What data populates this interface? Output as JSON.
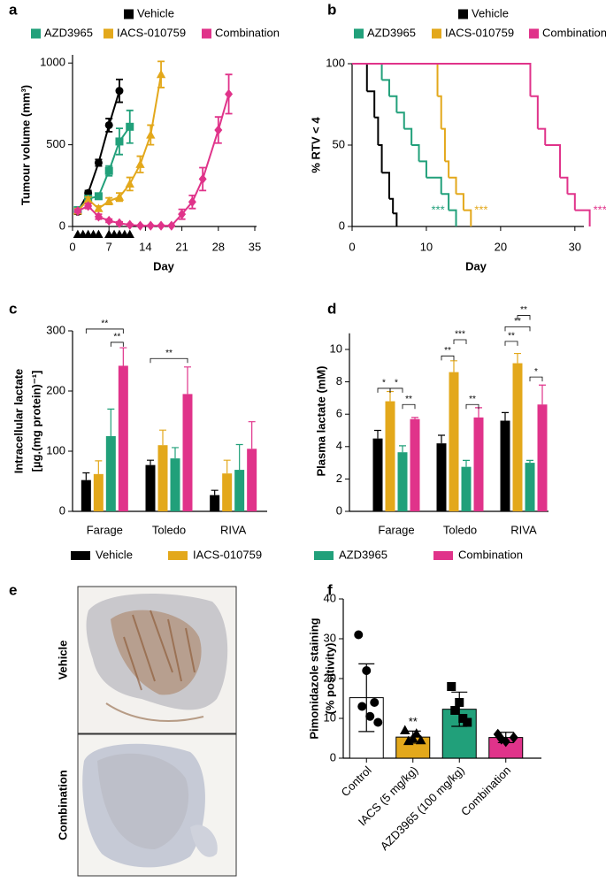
{
  "panel_labels": [
    "a",
    "b",
    "c",
    "d",
    "e",
    "f"
  ],
  "panel_e": {
    "labels": [
      "Vehicle",
      "Combination"
    ]
  },
  "chart_data": [
    {
      "type": "line",
      "ylabel": "Tumour volume (mm³)",
      "xlabel": "Day",
      "xlim": [
        0,
        35
      ],
      "xticks": [
        0,
        7,
        14,
        21,
        28,
        35
      ],
      "ylim": [
        0,
        1050
      ],
      "yticks": [
        0,
        500,
        1000
      ],
      "dosing_days": [
        1,
        2,
        3,
        4,
        5,
        7,
        8,
        9,
        10,
        11
      ],
      "series": [
        {
          "name": "Vehicle",
          "color": "#000000",
          "marker": "circle",
          "x": [
            1,
            3,
            5,
            7,
            9
          ],
          "values": [
            90,
            205,
            390,
            620,
            830
          ],
          "errors": [
            15,
            15,
            20,
            40,
            70
          ]
        },
        {
          "name": "AZD3965",
          "color": "#21a07a",
          "marker": "square",
          "x": [
            1,
            3,
            5,
            7,
            9,
            11
          ],
          "values": [
            100,
            170,
            185,
            340,
            520,
            610
          ],
          "errors": [
            15,
            15,
            15,
            30,
            80,
            100
          ]
        },
        {
          "name": "IACS-010759",
          "color": "#e3a81b",
          "marker": "triangle",
          "x": [
            1,
            3,
            5,
            7,
            9,
            11,
            13,
            15,
            17
          ],
          "values": [
            95,
            165,
            110,
            155,
            180,
            260,
            380,
            560,
            930
          ],
          "errors": [
            15,
            15,
            15,
            20,
            25,
            40,
            50,
            60,
            80
          ]
        },
        {
          "name": "Combination",
          "color": "#e0338a",
          "marker": "diamond",
          "x": [
            1,
            3,
            5,
            7,
            9,
            11,
            13,
            15,
            17,
            19,
            21,
            23,
            25,
            28,
            30
          ],
          "values": [
            95,
            125,
            60,
            35,
            20,
            10,
            5,
            5,
            5,
            5,
            75,
            150,
            290,
            590,
            810
          ],
          "errors": [
            10,
            15,
            15,
            10,
            8,
            5,
            3,
            3,
            3,
            3,
            30,
            40,
            70,
            80,
            120
          ]
        }
      ]
    },
    {
      "type": "step",
      "ylabel": "% RTV < 4",
      "xlabel": "Day",
      "xlim": [
        0,
        33
      ],
      "xticks": [
        0,
        10,
        20,
        30
      ],
      "ylim": [
        0,
        100
      ],
      "yticks": [
        0,
        50,
        100
      ],
      "series": [
        {
          "name": "Vehicle",
          "color": "#000000",
          "x": [
            0,
            2,
            3,
            3.5,
            4,
            5,
            5.5,
            6
          ],
          "values": [
            100,
            83,
            67,
            50,
            33,
            17,
            8,
            0
          ]
        },
        {
          "name": "AZD3965",
          "color": "#21a07a",
          "x": [
            0,
            4,
            5,
            6,
            7,
            8,
            9,
            10,
            12,
            13,
            14
          ],
          "values": [
            100,
            90,
            80,
            70,
            60,
            50,
            40,
            30,
            20,
            10,
            0
          ],
          "annotation": "***"
        },
        {
          "name": "IACS-010759",
          "color": "#e3a81b",
          "x": [
            0,
            11.5,
            12,
            12.5,
            13,
            14,
            15,
            16
          ],
          "values": [
            100,
            80,
            60,
            40,
            30,
            20,
            10,
            0
          ],
          "annotation": "***"
        },
        {
          "name": "Combination",
          "color": "#e0338a",
          "x": [
            0,
            24,
            25,
            26,
            28,
            29,
            30,
            32
          ],
          "values": [
            100,
            80,
            60,
            50,
            30,
            20,
            10,
            0
          ],
          "annotation": "***"
        }
      ]
    },
    {
      "type": "bar",
      "ylabel": [
        "Intracellular lactate",
        "[µg.(mg protein)⁻¹]"
      ],
      "categories": [
        "Farage",
        "Toledo",
        "RIVA"
      ],
      "ylim": [
        0,
        300
      ],
      "yticks": [
        0,
        100,
        200,
        300
      ],
      "series": [
        {
          "name": "Vehicle",
          "color": "#000000",
          "values": [
            52,
            77,
            27
          ],
          "errors": [
            12,
            8,
            8
          ]
        },
        {
          "name": "IACS-010759",
          "color": "#e3a81b",
          "values": [
            62,
            110,
            63
          ],
          "errors": [
            22,
            25,
            22
          ]
        },
        {
          "name": "AZD3965",
          "color": "#21a07a",
          "values": [
            125,
            88,
            69
          ],
          "errors": [
            45,
            18,
            42
          ]
        },
        {
          "name": "Combination",
          "color": "#e0338a",
          "values": [
            242,
            195,
            104
          ],
          "errors": [
            30,
            45,
            45
          ]
        }
      ],
      "significance": [
        "**",
        "**",
        "**"
      ]
    },
    {
      "type": "bar",
      "ylabel": "Plasma lactate (mM)",
      "categories": [
        "Farage",
        "Toledo",
        "RIVA"
      ],
      "ylim": [
        0,
        11
      ],
      "yticks": [
        0,
        2,
        4,
        6,
        8,
        10
      ],
      "series": [
        {
          "color": "#000000",
          "values": [
            4.5,
            4.2,
            5.6
          ],
          "errors": [
            0.5,
            0.5,
            0.5
          ]
        },
        {
          "color": "#e3a81b",
          "values": [
            6.8,
            8.6,
            9.15
          ],
          "errors": [
            0.6,
            0.7,
            0.6
          ]
        },
        {
          "color": "#21a07a",
          "values": [
            3.65,
            2.75,
            3.0
          ],
          "errors": [
            0.4,
            0.4,
            0.15
          ]
        },
        {
          "color": "#e0338a",
          "values": [
            5.7,
            5.8,
            6.6
          ],
          "errors": [
            0.1,
            0.6,
            1.2
          ]
        }
      ],
      "significance": [
        "*",
        "*",
        "**",
        "**",
        "***",
        "**",
        "**",
        "**",
        "**",
        "*"
      ]
    },
    {
      "type": "bar",
      "ylabel": [
        "Pimonidazole staining",
        "(% positivity)"
      ],
      "categories": [
        "Control",
        "IACS (5 mg/kg)",
        "AZD3965 (100 mg/kg)",
        "Combination"
      ],
      "ylim": [
        0,
        40
      ],
      "yticks": [
        0,
        10,
        20,
        30,
        40
      ],
      "values": [
        15.2,
        5.3,
        12.3,
        5.2
      ],
      "errors": [
        8.5,
        1.5,
        4.3,
        1.3
      ],
      "colors": [
        "#ffffff",
        "#e3a81b",
        "#21a07a",
        "#e0338a"
      ],
      "markers": [
        "circle",
        "triangle",
        "square",
        "diamond"
      ],
      "points": [
        [
          31,
          22,
          14,
          13,
          10.5,
          9
        ],
        [
          7,
          5,
          4.5,
          4.3,
          6.2
        ],
        [
          18,
          14,
          9,
          12,
          10
        ],
        [
          6,
          4.2,
          5.2,
          4.8
        ]
      ],
      "significance": [
        "**"
      ]
    }
  ]
}
